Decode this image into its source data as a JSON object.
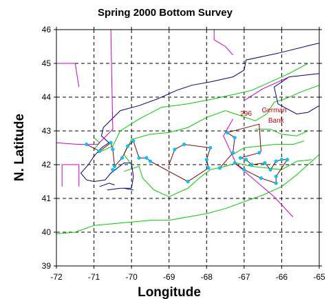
{
  "chart_data": {
    "type": "map",
    "title": "Spring 2000 Bottom Survey",
    "xlabel": "Longitude",
    "ylabel": "N. Latitude",
    "xlim": [
      -72,
      -65
    ],
    "ylim": [
      39,
      46
    ],
    "x_ticks": [
      "-72",
      "-71",
      "-70",
      "-69",
      "-68",
      "-67",
      "-66",
      "-65"
    ],
    "y_ticks": [
      "39",
      "40",
      "41",
      "42",
      "43",
      "44",
      "45",
      "46"
    ],
    "grid": true,
    "colors": {
      "coastline": "#000080",
      "boundary": "#cc00cc",
      "depth_contour": "#00cc00",
      "track": "#800000",
      "station": "#00ccff",
      "annotation": "#cc0000"
    },
    "annotations": [
      {
        "text": "296",
        "lon": -66.95,
        "lat": 43.45
      },
      {
        "text": "German",
        "lon": -66.2,
        "lat": 43.55
      },
      {
        "text": "Bank",
        "lon": -66.15,
        "lat": 43.25
      }
    ],
    "stations": [
      [
        -71.2,
        42.6
      ],
      [
        -70.85,
        42.4
      ],
      [
        -70.55,
        42.65
      ],
      [
        -70.5,
        42.45
      ],
      [
        -70.45,
        41.95
      ],
      [
        -70.5,
        41.85
      ],
      [
        -70.25,
        42.2
      ],
      [
        -70.1,
        42.55
      ],
      [
        -69.95,
        42.7
      ],
      [
        -69.6,
        42.2
      ],
      [
        -69.8,
        42.2
      ],
      [
        -69.5,
        42.1
      ],
      [
        -68.85,
        42.45
      ],
      [
        -68.6,
        42.6
      ],
      [
        -68.5,
        41.5
      ],
      [
        -68.0,
        42.15
      ],
      [
        -67.9,
        42.5
      ],
      [
        -67.95,
        41.9
      ],
      [
        -67.65,
        41.9
      ],
      [
        -67.45,
        42.95
      ],
      [
        -67.25,
        42.8
      ],
      [
        -67.3,
        42.35
      ],
      [
        -67.25,
        42.05
      ],
      [
        -67.1,
        42.2
      ],
      [
        -66.95,
        42.15
      ],
      [
        -66.8,
        42.0
      ],
      [
        -66.6,
        42.35
      ],
      [
        -66.45,
        42.05
      ],
      [
        -66.3,
        41.85
      ],
      [
        -66.15,
        42.1
      ],
      [
        -66.0,
        42.15
      ],
      [
        -65.85,
        42.15
      ],
      [
        -66.15,
        41.65
      ],
      [
        -66.15,
        41.45
      ],
      [
        -66.55,
        41.6
      ],
      [
        -67.0,
        41.85
      ]
    ],
    "track": [
      [
        -71.2,
        42.6
      ],
      [
        -70.85,
        42.4
      ],
      [
        -70.55,
        42.65
      ],
      [
        -70.5,
        42.45
      ],
      [
        -70.45,
        41.95
      ],
      [
        -70.25,
        42.2
      ],
      [
        -70.1,
        42.55
      ],
      [
        -69.95,
        42.7
      ],
      [
        -69.8,
        42.2
      ],
      [
        -69.6,
        42.2
      ],
      [
        -69.5,
        42.1
      ],
      [
        -68.5,
        41.5
      ],
      [
        -67.95,
        41.9
      ],
      [
        -68.0,
        42.15
      ],
      [
        -67.9,
        42.5
      ],
      [
        -68.6,
        42.6
      ],
      [
        -68.85,
        42.45
      ],
      [
        -69.0,
        42.0
      ]
    ],
    "track2": [
      [
        -67.65,
        41.9
      ],
      [
        -67.3,
        42.35
      ],
      [
        -67.25,
        42.8
      ],
      [
        -67.45,
        42.95
      ],
      [
        -66.6,
        43.2
      ],
      [
        -66.55,
        42.4
      ],
      [
        -66.6,
        42.35
      ],
      [
        -67.1,
        42.2
      ],
      [
        -66.95,
        42.15
      ],
      [
        -66.8,
        42.0
      ],
      [
        -66.45,
        42.05
      ],
      [
        -66.3,
        41.85
      ],
      [
        -66.15,
        42.1
      ],
      [
        -66.0,
        42.15
      ],
      [
        -65.85,
        42.15
      ],
      [
        -66.15,
        41.65
      ],
      [
        -66.15,
        41.45
      ],
      [
        -66.55,
        41.6
      ],
      [
        -67.0,
        41.85
      ],
      [
        -67.25,
        42.05
      ]
    ],
    "boundary_lines": [
      [
        [
          -67.3,
          43.35
        ],
        [
          -67.55,
          42.85
        ],
        [
          -67.2,
          42.0
        ],
        [
          -66.2,
          41.05
        ],
        [
          -65.7,
          40.45
        ]
      ],
      [
        [
          -70.55,
          46.0
        ],
        [
          -70.5,
          43.05
        ],
        [
          -70.9,
          42.6
        ],
        [
          -71.4,
          42.6
        ],
        [
          -72.0,
          42.65
        ]
      ],
      [
        [
          -72.0,
          45.0
        ],
        [
          -71.5,
          45.0
        ],
        [
          -71.4,
          44.3
        ]
      ],
      [
        [
          -71.85,
          41.35
        ],
        [
          -71.85,
          42.0
        ],
        [
          -71.4,
          42.0
        ],
        [
          -71.4,
          41.35
        ]
      ],
      [
        [
          -67.8,
          46.0
        ],
        [
          -67.8,
          45.7
        ],
        [
          -67.5,
          45.5
        ],
        [
          -67.3,
          45.25
        ]
      ],
      [
        [
          -65.8,
          44.6
        ],
        [
          -66.5,
          44.25
        ],
        [
          -67.0,
          43.9
        ]
      ]
    ],
    "coastline": [
      [
        [
          -70.65,
          41.25
        ],
        [
          -70.3,
          41.3
        ],
        [
          -70.0,
          41.3
        ],
        [
          -69.95,
          41.65
        ],
        [
          -70.0,
          42.05
        ],
        [
          -70.2,
          42.05
        ],
        [
          -70.55,
          41.75
        ],
        [
          -70.7,
          41.55
        ],
        [
          -71.0,
          41.5
        ],
        [
          -71.2,
          41.55
        ],
        [
          -71.35,
          41.75
        ],
        [
          -71.15,
          42.0
        ],
        [
          -71.0,
          42.25
        ],
        [
          -70.8,
          42.5
        ],
        [
          -70.6,
          42.65
        ],
        [
          -70.8,
          42.85
        ],
        [
          -70.75,
          43.1
        ],
        [
          -70.3,
          43.6
        ],
        [
          -69.8,
          43.75
        ],
        [
          -69.3,
          43.95
        ],
        [
          -68.8,
          44.2
        ],
        [
          -68.4,
          44.35
        ],
        [
          -67.9,
          44.45
        ],
        [
          -67.3,
          44.6
        ],
        [
          -67.0,
          44.8
        ],
        [
          -66.95,
          45.1
        ],
        [
          -66.1,
          45.3
        ],
        [
          -65.2,
          45.55
        ],
        [
          -65.0,
          45.6
        ]
      ],
      [
        [
          -65.0,
          44.7
        ],
        [
          -65.8,
          44.6
        ],
        [
          -66.2,
          44.3
        ],
        [
          -66.1,
          43.8
        ],
        [
          -65.6,
          43.5
        ],
        [
          -65.3,
          43.55
        ],
        [
          -65.0,
          43.75
        ]
      ],
      [
        [
          -70.85,
          41.35
        ],
        [
          -70.6,
          41.45
        ],
        [
          -70.45,
          41.4
        ]
      ],
      [
        [
          -70.2,
          41.3
        ],
        [
          -69.95,
          41.25
        ]
      ]
    ],
    "depth_contours": [
      [
        [
          -70.9,
          42.35
        ],
        [
          -70.5,
          42.55
        ],
        [
          -70.3,
          43.0
        ],
        [
          -69.8,
          43.35
        ],
        [
          -69.2,
          43.7
        ],
        [
          -68.5,
          43.8
        ],
        [
          -67.8,
          43.95
        ],
        [
          -67.2,
          44.1
        ],
        [
          -66.8,
          44.2
        ],
        [
          -66.4,
          44.4
        ],
        [
          -65.8,
          44.7
        ],
        [
          -65.3,
          45.0
        ]
      ],
      [
        [
          -70.0,
          42.0
        ],
        [
          -70.2,
          42.3
        ],
        [
          -70.0,
          42.75
        ],
        [
          -69.5,
          42.9
        ],
        [
          -69.0,
          42.95
        ],
        [
          -68.5,
          43.1
        ],
        [
          -68.0,
          43.4
        ],
        [
          -67.5,
          43.6
        ],
        [
          -67.1,
          43.45
        ],
        [
          -66.7,
          43.3
        ],
        [
          -66.4,
          43.5
        ],
        [
          -66.2,
          43.85
        ],
        [
          -65.9,
          43.95
        ],
        [
          -65.5,
          44.15
        ],
        [
          -65.0,
          44.35
        ]
      ],
      [
        [
          -70.2,
          41.8
        ],
        [
          -69.8,
          41.95
        ],
        [
          -69.7,
          41.6
        ],
        [
          -69.4,
          41.25
        ],
        [
          -69.0,
          41.05
        ],
        [
          -68.5,
          41.3
        ],
        [
          -68.2,
          41.6
        ],
        [
          -67.9,
          41.85
        ],
        [
          -67.5,
          41.95
        ],
        [
          -67.2,
          42.05
        ],
        [
          -66.8,
          41.95
        ],
        [
          -66.4,
          41.9
        ],
        [
          -66.0,
          41.85
        ],
        [
          -65.6,
          42.1
        ],
        [
          -65.2,
          42.15
        ]
      ],
      [
        [
          -71.0,
          42.45
        ],
        [
          -70.85,
          42.65
        ],
        [
          -71.0,
          42.8
        ]
      ],
      [
        [
          -67.3,
          42.3
        ],
        [
          -67.0,
          42.5
        ],
        [
          -66.6,
          42.55
        ],
        [
          -66.2,
          42.6
        ],
        [
          -65.7,
          42.6
        ],
        [
          -65.4,
          42.7
        ]
      ],
      [
        [
          -66.7,
          43.05
        ],
        [
          -66.3,
          43.05
        ],
        [
          -66.0,
          42.9
        ],
        [
          -65.6,
          42.85
        ],
        [
          -65.3,
          43.0
        ]
      ],
      [
        [
          -72.0,
          39.95
        ],
        [
          -71.5,
          40.0
        ],
        [
          -71.0,
          40.2
        ],
        [
          -70.5,
          40.25
        ],
        [
          -70.0,
          40.3
        ],
        [
          -69.5,
          40.35
        ],
        [
          -69.0,
          40.35
        ],
        [
          -68.5,
          40.45
        ],
        [
          -68.0,
          40.55
        ],
        [
          -67.5,
          40.7
        ],
        [
          -67.0,
          40.9
        ],
        [
          -66.5,
          41.1
        ],
        [
          -66.0,
          41.35
        ],
        [
          -65.6,
          41.7
        ],
        [
          -65.2,
          42.1
        ],
        [
          -65.0,
          42.3
        ]
      ]
    ]
  }
}
